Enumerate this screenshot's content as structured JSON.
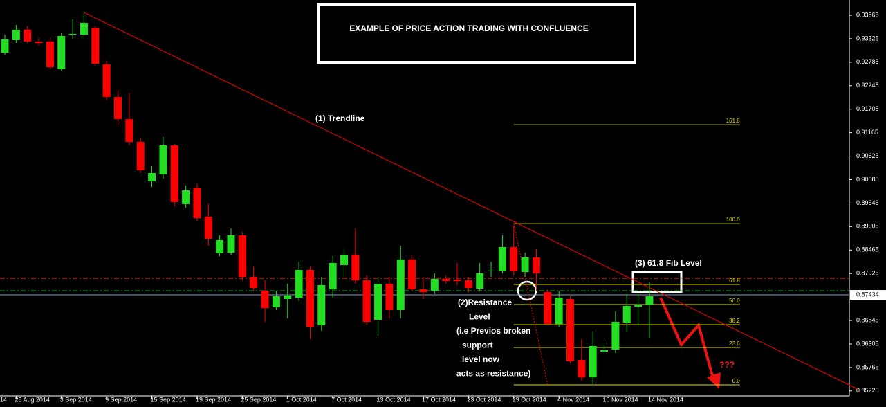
{
  "chart_data": {
    "type": "candlestick",
    "title": "EXAMPLE OF PRICE ACTION TRADING WITH CONFLUENCE",
    "edge_label": "14",
    "categories": [
      null,
      "28 Aug 2014",
      null,
      null,
      null,
      "3 Sep 2014",
      null,
      null,
      null,
      "9 Sep 2014",
      null,
      null,
      null,
      "15 Sep 2014",
      null,
      null,
      null,
      "19 Sep 2014",
      null,
      null,
      null,
      "25 Sep 2014",
      null,
      null,
      null,
      "1 Oct 2014",
      null,
      null,
      null,
      "7 Oct 2014",
      null,
      null,
      null,
      "13 Oct 2014",
      null,
      null,
      null,
      "17 Oct 2014",
      null,
      null,
      null,
      "23 Oct 2014",
      null,
      null,
      null,
      "29 Oct 2014",
      null,
      null,
      null,
      "4 Nov 2014",
      null,
      null,
      null,
      "10 Nov 2014",
      null,
      null,
      null,
      "14 Nov 2014"
    ],
    "open": [
      0.93005,
      0.93292,
      0.93531,
      0.9326,
      0.9326,
      0.92623,
      0.93419,
      0.93419,
      0.93578,
      0.92735,
      0.91987,
      0.91477,
      0.90952,
      0.90045,
      0.90204,
      0.90873,
      0.8952,
      0.89886,
      0.89233,
      0.8839,
      0.88406,
      0.88804,
      0.87849,
      0.8753,
      0.87148,
      0.87339,
      0.87371,
      0.88008,
      0.86734,
      0.87562,
      0.88119,
      0.88358,
      0.87769,
      0.86862,
      0.87689,
      0.87085,
      0.88246,
      0.87562,
      0.8753,
      0.87801,
      0.87785,
      0.87769,
      0.87578,
      0.87976,
      0.87976,
      0.88533,
      0.8796,
      0.88294,
      0.87498,
      0.86766,
      0.87339,
      0.85939,
      0.85541,
      0.8613,
      0.86177,
      0.86798,
      0.87164,
      0.87212
    ],
    "high": [
      0.93419,
      0.93642,
      0.9361,
      0.9334,
      0.9334,
      0.93451,
      0.93769,
      0.93929,
      0.9361,
      0.92814,
      0.92146,
      0.92066,
      0.91032,
      0.90395,
      0.91064,
      0.90904,
      0.8995,
      0.89997,
      0.8952,
      0.88804,
      0.88963,
      0.88883,
      0.88087,
      0.87769,
      0.8753,
      0.87689,
      0.88199,
      0.88087,
      0.87849,
      0.88326,
      0.88485,
      0.88963,
      0.8788,
      0.87849,
      0.87849,
      0.88565,
      0.88358,
      0.87849,
      0.87928,
      0.8788,
      0.88167,
      0.87849,
      0.88167,
      0.88199,
      0.88804,
      0.89042,
      0.88406,
      0.88485,
      0.87562,
      0.8753,
      0.87403,
      0.86416,
      0.86607,
      0.86337,
      0.87053,
      0.87451,
      0.87451,
      0.87721
    ],
    "low": [
      0.92942,
      0.93228,
      0.93228,
      0.93165,
      0.92623,
      0.92592,
      0.93324,
      0.93324,
      0.92687,
      0.91907,
      0.9135,
      0.90873,
      0.90236,
      0.89918,
      0.90109,
      0.89472,
      0.8944,
      0.89122,
      0.88565,
      0.88326,
      0.88358,
      0.87769,
      0.8753,
      0.86814,
      0.87085,
      0.86894,
      0.87292,
      0.86416,
      0.86607,
      0.87371,
      0.87849,
      0.87689,
      0.86734,
      0.86496,
      0.86894,
      0.86894,
      0.8753,
      0.87339,
      0.87451,
      0.87689,
      0.87658,
      0.87498,
      0.8753,
      0.87849,
      0.87928,
      0.8788,
      0.87849,
      0.8753,
      0.86734,
      0.86703,
      0.85859,
      0.85461,
      0.85382,
      0.86066,
      0.86098,
      0.86575,
      0.86734,
      0.86448
    ],
    "close": [
      0.93308,
      0.93531,
      0.9326,
      0.93228,
      0.92671,
      0.93387,
      0.93435,
      0.9369,
      0.92751,
      0.91987,
      0.91477,
      0.90952,
      0.903,
      0.90236,
      0.90873,
      0.89568,
      0.89838,
      0.89201,
      0.88724,
      0.88692,
      0.88804,
      0.87849,
      0.87594,
      0.87132,
      0.87403,
      0.87419,
      0.88008,
      0.86703,
      0.87658,
      0.88167,
      0.88358,
      0.87769,
      0.86814,
      0.87689,
      0.87085,
      0.88246,
      0.87562,
      0.87498,
      0.87801,
      0.87753,
      0.87753,
      0.87594,
      0.87928,
      0.87992,
      0.88533,
      0.87976,
      0.88294,
      0.87928,
      0.86766,
      0.87371,
      0.85907,
      0.85541,
      0.86257,
      0.86162,
      0.86814,
      0.8718,
      0.87212,
      0.87403
    ],
    "up_color": "#22dd22",
    "down_color": "#ff0000",
    "ylim": [
      0.85111,
      0.94215
    ],
    "yticks": [
      0.93865,
      0.93325,
      0.92785,
      0.92245,
      0.91705,
      0.91165,
      0.90625,
      0.90085,
      0.89545,
      0.89005,
      0.88465,
      0.87925,
      0.86845,
      0.86305,
      0.85765,
      0.85225
    ],
    "current_price": 0.87434,
    "hlines": [
      {
        "value": 0.87817,
        "color": "#ff3030"
      },
      {
        "value": 0.8753,
        "color": "#00b000"
      }
    ],
    "trendline": {
      "label": "(1) Trendline",
      "x": [
        7,
        75.4
      ],
      "values": [
        0.93929,
        0.8527
      ],
      "color": "#ff0000"
    },
    "fib": {
      "x": [
        45,
        65
      ],
      "levels": [
        {
          "name": "161.8",
          "value": 0.9135,
          "color": "#a0a000"
        },
        {
          "name": "100.0",
          "value": 0.89074,
          "color": "#a0a000"
        },
        {
          "name": "61.8",
          "value": 0.87674,
          "color": "#e0e000"
        },
        {
          "name": "50.0",
          "value": 0.87212,
          "color": "#e0e000"
        },
        {
          "name": "38.2",
          "value": 0.8675,
          "color": "#e0e000"
        },
        {
          "name": "23.6",
          "value": 0.86225,
          "color": "#e0e000"
        },
        {
          "name": "0.0",
          "value": 0.85366,
          "color": "#e0e000"
        }
      ]
    },
    "fib_note": "(3) 61.8 Fib Level",
    "resistance_note": [
      "(2)Resistance",
      "Level",
      "(i.e Previos broken",
      "support",
      "level now",
      "acts as resistance)"
    ],
    "question": "???"
  }
}
